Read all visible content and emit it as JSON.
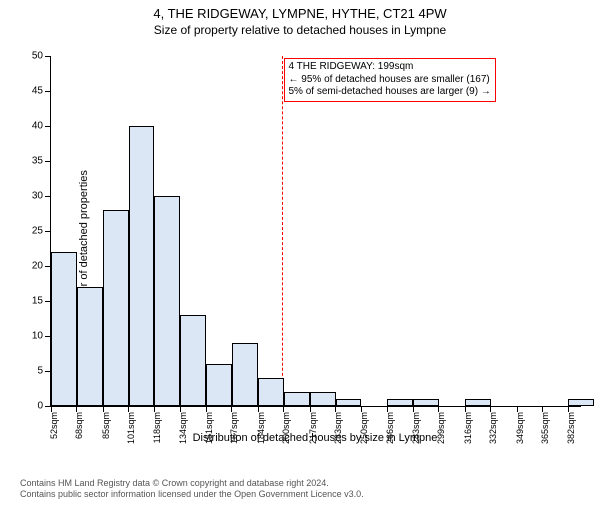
{
  "title": "4, THE RIDGEWAY, LYMPNE, HYTHE, CT21 4PW",
  "subtitle": "Size of property relative to detached houses in Lympne",
  "chart": {
    "type": "histogram",
    "ylabel": "Number of detached properties",
    "xlabel": "Distribution of detached houses by size in Lympne",
    "ylim": [
      0,
      50
    ],
    "ytick_step": 5,
    "yticks": [
      0,
      5,
      10,
      15,
      20,
      25,
      30,
      35,
      40,
      45,
      50
    ],
    "xticks": [
      "52sqm",
      "68sqm",
      "85sqm",
      "101sqm",
      "118sqm",
      "134sqm",
      "151sqm",
      "167sqm",
      "184sqm",
      "200sqm",
      "217sqm",
      "233sqm",
      "250sqm",
      "266sqm",
      "283sqm",
      "299sqm",
      "316sqm",
      "332sqm",
      "349sqm",
      "365sqm",
      "382sqm"
    ],
    "x_min": 52,
    "x_max": 390,
    "bin_width_sqm": 16.5,
    "bars": [
      {
        "x": 52.0,
        "count": 22
      },
      {
        "x": 68.5,
        "count": 17
      },
      {
        "x": 85.0,
        "count": 28
      },
      {
        "x": 101.5,
        "count": 40
      },
      {
        "x": 118.0,
        "count": 30
      },
      {
        "x": 134.5,
        "count": 13
      },
      {
        "x": 151.0,
        "count": 6
      },
      {
        "x": 167.5,
        "count": 9
      },
      {
        "x": 184.0,
        "count": 4
      },
      {
        "x": 200.5,
        "count": 2
      },
      {
        "x": 217.0,
        "count": 2
      },
      {
        "x": 233.5,
        "count": 1
      },
      {
        "x": 250.0,
        "count": 0
      },
      {
        "x": 266.5,
        "count": 1
      },
      {
        "x": 283.0,
        "count": 1
      },
      {
        "x": 299.5,
        "count": 0
      },
      {
        "x": 316.0,
        "count": 1
      },
      {
        "x": 332.5,
        "count": 0
      },
      {
        "x": 349.0,
        "count": 0
      },
      {
        "x": 365.5,
        "count": 0
      },
      {
        "x": 382.0,
        "count": 1
      }
    ],
    "bar_fill": "#dbe7f5",
    "bar_stroke": "#000000",
    "background_color": "#ffffff",
    "ref_line": {
      "x_sqm": 199,
      "color": "#ff0000"
    },
    "annotation": {
      "border_color": "#ff0000",
      "lines": [
        "4 THE RIDGEWAY: 199sqm",
        "← 95% of detached houses are smaller (167)",
        "5% of semi-detached houses are larger (9) →"
      ]
    }
  },
  "footer": {
    "line1": "Contains HM Land Registry data © Crown copyright and database right 2024.",
    "line2": "Contains public sector information licensed under the Open Government Licence v3.0."
  }
}
